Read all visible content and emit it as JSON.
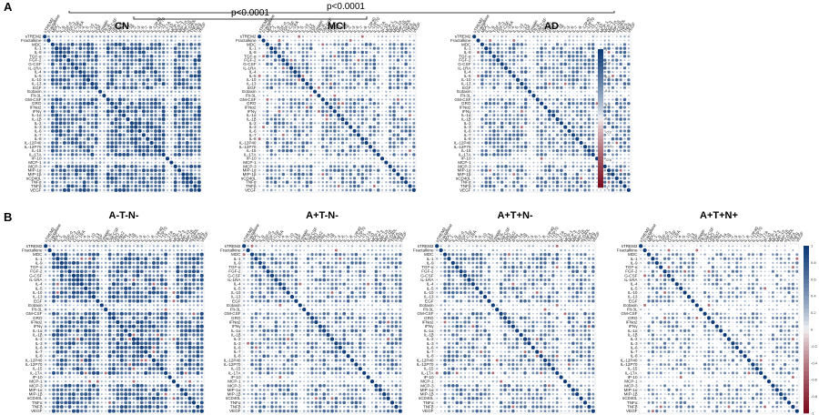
{
  "figure": {
    "panel_a_label": "A",
    "panel_b_label": "B",
    "significance": [
      {
        "text": "p<0.0001",
        "from": "CN",
        "to": "MCI"
      },
      {
        "text": "p<0.0001",
        "from": "CN",
        "to": "AD"
      }
    ]
  },
  "colorbar": {
    "ticks": [
      "1",
      "0.8",
      "0.6",
      "0.4",
      "0.2",
      "0",
      "-0.2",
      "-0.4",
      "-0.6",
      "-0.8",
      "-1"
    ],
    "colors": {
      "neg": "#7b0d1e",
      "mid": "#f7f7f7",
      "pos": "#0d3b78"
    }
  },
  "chart_data": [
    {
      "type": "heatmap",
      "title": "CN",
      "panel": "A",
      "pattern": "strong"
    },
    {
      "type": "heatmap",
      "title": "MCI",
      "panel": "A",
      "pattern": "moderate"
    },
    {
      "type": "heatmap",
      "title": "AD",
      "panel": "A",
      "pattern": "moderate"
    },
    {
      "type": "heatmap",
      "title": "A-T-N-",
      "panel": "B",
      "pattern": "strong"
    },
    {
      "type": "heatmap",
      "title": "A+T-N-",
      "panel": "B",
      "pattern": "moderate"
    },
    {
      "type": "heatmap",
      "title": "A+T+N-",
      "panel": "B",
      "pattern": "moderate"
    },
    {
      "type": "heatmap",
      "title": "A+T+N+",
      "panel": "B",
      "pattern": "weak"
    }
  ],
  "variables": [
    "sTREM2",
    "Fractalkine",
    "MDC",
    "IL-1",
    "IL-9",
    "TGF-α",
    "FGF-2",
    "G-CSF",
    "IL-1RA",
    "IL-4",
    "IL-5",
    "IL-10",
    "IL-13",
    "EGF",
    "Eotaxin",
    "Flt-3L",
    "GM-CSF",
    "GRO",
    "IFNα2",
    "IFNγ",
    "IL-1α",
    "IL-1β",
    "IL-2",
    "IL-3",
    "IL-6",
    "IL-7",
    "IL-8",
    "IL-12P40",
    "IL-12P70",
    "IL-15",
    "IL-17A",
    "IP-10",
    "MCP-1",
    "MCP-3",
    "MIP-1α",
    "MIP-1β",
    "sCD40L",
    "TNFα",
    "TNFβ",
    "VEGF"
  ]
}
